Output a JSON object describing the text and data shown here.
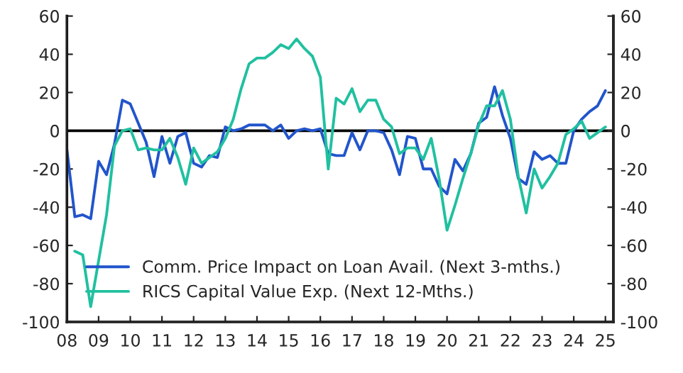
{
  "chart_data": {
    "type": "line",
    "x": [
      2008.0,
      2008.25,
      2008.5,
      2008.75,
      2009.0,
      2009.25,
      2009.5,
      2009.75,
      2010.0,
      2010.25,
      2010.5,
      2010.75,
      2011.0,
      2011.25,
      2011.5,
      2011.75,
      2012.0,
      2012.25,
      2012.5,
      2012.75,
      2013.0,
      2013.25,
      2013.5,
      2013.75,
      2014.0,
      2014.25,
      2014.5,
      2014.75,
      2015.0,
      2015.25,
      2015.5,
      2015.75,
      2016.0,
      2016.25,
      2016.5,
      2016.75,
      2017.0,
      2017.25,
      2017.5,
      2017.75,
      2018.0,
      2018.25,
      2018.5,
      2018.75,
      2019.0,
      2019.25,
      2019.5,
      2019.75,
      2020.0,
      2020.25,
      2020.5,
      2020.75,
      2021.0,
      2021.25,
      2021.5,
      2021.75,
      2022.0,
      2022.25,
      2022.5,
      2022.75,
      2023.0,
      2023.25,
      2023.5,
      2023.75,
      2024.0,
      2024.25,
      2024.5,
      2024.75,
      2025.0
    ],
    "series": [
      {
        "name": "Comm. Price Impact on Loan Avail. (Next 3-mths.)",
        "color": "#2255cc",
        "values": [
          -10,
          -45,
          -44,
          -46,
          -16,
          -23,
          -7,
          16,
          14,
          4,
          -6,
          -24,
          -3,
          -17,
          -3,
          -1,
          -17,
          -19,
          -13,
          -14,
          2,
          0,
          1,
          3,
          3,
          3,
          0,
          3,
          -4,
          0,
          1,
          0,
          1,
          -12,
          -13,
          -13,
          -1,
          -10,
          0,
          0,
          -1,
          -10,
          -23,
          -3,
          -4,
          -20,
          -20,
          -29,
          -33,
          -15,
          -21,
          -12,
          4,
          7,
          23,
          8,
          -4,
          -25,
          -28,
          -11,
          -15,
          -13,
          -17,
          -17,
          0,
          6,
          10,
          13,
          21
        ]
      },
      {
        "name": "RICS Capital Value Exp. (Next 12-Mths.)",
        "color": "#20c0a0",
        "values": [
          null,
          -63,
          -65,
          -92,
          -68,
          -44,
          -8,
          0,
          1,
          -10,
          -9,
          -10,
          -10,
          -4,
          -14,
          -28,
          -9,
          -17,
          -14,
          -11,
          -4,
          6,
          22,
          35,
          38,
          38,
          41,
          45,
          43,
          48,
          43,
          39,
          28,
          -20,
          17,
          14,
          22,
          10,
          16,
          16,
          6,
          2,
          -12,
          -9,
          -9,
          -15,
          -4,
          -25,
          -52,
          -39,
          -25,
          -12,
          3,
          13,
          13,
          21,
          6,
          -24,
          -43,
          -20,
          -30,
          -24,
          -17,
          -2,
          1,
          5,
          -4,
          -1,
          2
        ]
      }
    ],
    "xlim": [
      2008,
      2025.25
    ],
    "xticks": [
      {
        "value": 2008,
        "label": "08"
      },
      {
        "value": 2009,
        "label": "09"
      },
      {
        "value": 2010,
        "label": "10"
      },
      {
        "value": 2011,
        "label": "11"
      },
      {
        "value": 2012,
        "label": "12"
      },
      {
        "value": 2013,
        "label": "13"
      },
      {
        "value": 2014,
        "label": "14"
      },
      {
        "value": 2015,
        "label": "15"
      },
      {
        "value": 2016,
        "label": "16"
      },
      {
        "value": 2017,
        "label": "17"
      },
      {
        "value": 2018,
        "label": "18"
      },
      {
        "value": 2019,
        "label": "19"
      },
      {
        "value": 2020,
        "label": "20"
      },
      {
        "value": 2021,
        "label": "21"
      },
      {
        "value": 2022,
        "label": "22"
      },
      {
        "value": 2023,
        "label": "23"
      },
      {
        "value": 2024,
        "label": "24"
      },
      {
        "value": 2025,
        "label": "25"
      }
    ],
    "ylim": [
      -100,
      60
    ],
    "yticks": [
      -100,
      -80,
      -60,
      -40,
      -20,
      0,
      20,
      40,
      60
    ],
    "y2lim": [
      -100,
      60
    ],
    "y2ticks": [
      -100,
      -80,
      -60,
      -40,
      -20,
      0,
      20,
      40,
      60
    ],
    "ref_lines": [
      {
        "axis": "y",
        "value": 0,
        "label": null,
        "color": "#000000"
      }
    ],
    "grid": false,
    "legend": "bottom",
    "marker": "none",
    "line_style": "solid"
  }
}
